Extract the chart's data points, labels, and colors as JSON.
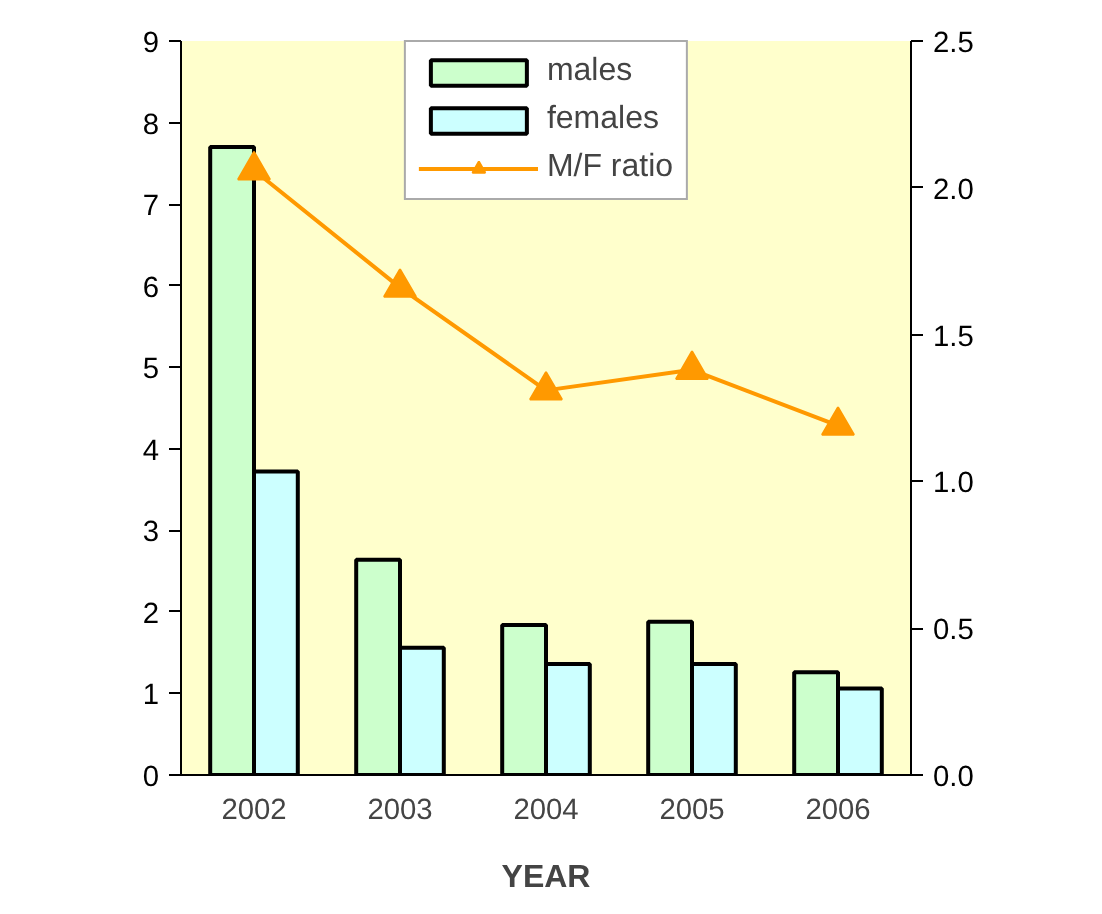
{
  "chart_data": {
    "type": "bar",
    "categories": [
      "2002",
      "2003",
      "2004",
      "2005",
      "2006"
    ],
    "xlabel": "YEAR",
    "series": [
      {
        "name": "males",
        "color": "#ccffcc",
        "values": [
          7.7,
          2.64,
          1.84,
          1.88,
          1.26
        ]
      },
      {
        "name": "females",
        "color": "#ccffff",
        "values": [
          3.72,
          1.56,
          1.36,
          1.36,
          1.06
        ]
      },
      {
        "name": "M/F ratio",
        "type": "line",
        "axis": "y2",
        "color": "#ff9900",
        "marker": "triangle",
        "values": [
          2.06,
          1.66,
          1.31,
          1.38,
          1.19
        ]
      }
    ],
    "ylim": [
      0,
      9
    ],
    "yticks": [
      0,
      1,
      2,
      3,
      4,
      5,
      6,
      7,
      8,
      9
    ],
    "y2lim": [
      0,
      2.5
    ],
    "y2ticks": [
      {
        "value": 0,
        "label": "0.0"
      },
      {
        "value": 0.5,
        "label": "0.5"
      },
      {
        "value": 1,
        "label": "1.0"
      },
      {
        "value": 1.5,
        "label": "1.5"
      },
      {
        "value": 2,
        "label": "2.0"
      },
      {
        "value": 2.5,
        "label": "2.5"
      }
    ],
    "grid": false,
    "legend": "top"
  }
}
